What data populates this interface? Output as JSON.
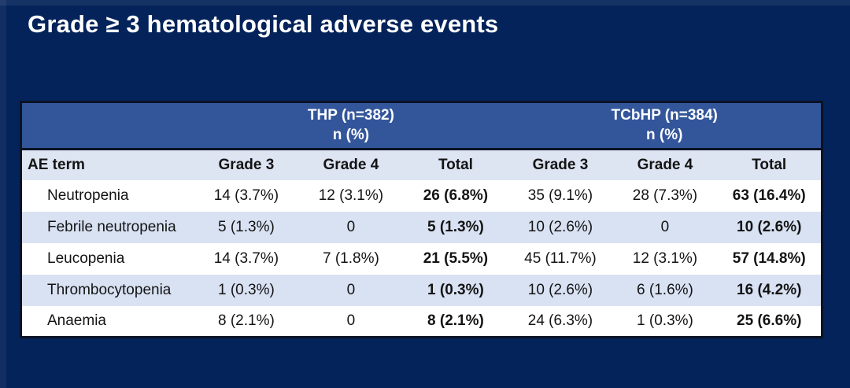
{
  "title": "Grade ≥ 3 hematological adverse events",
  "table": {
    "groups": [
      {
        "label": "THP (n=382)",
        "sublabel": "n (%)"
      },
      {
        "label": "TCbHP (n=384)",
        "sublabel": "n (%)"
      }
    ],
    "columns": [
      "AE term",
      "Grade 3",
      "Grade 4",
      "Total",
      "Grade 3",
      "Grade 4",
      "Total"
    ],
    "rows": [
      {
        "term": "Neutropenia",
        "values": [
          "14 (3.7%)",
          "12 (3.1%)",
          "26 (6.8%)",
          "35 (9.1%)",
          "28 (7.3%)",
          "63 (16.4%)"
        ]
      },
      {
        "term": "Febrile neutropenia",
        "values": [
          "5 (1.3%)",
          "0",
          "5 (1.3%)",
          "10 (2.6%)",
          "0",
          "10 (2.6%)"
        ]
      },
      {
        "term": "Leucopenia",
        "values": [
          "14 (3.7%)",
          "7 (1.8%)",
          "21 (5.5%)",
          "45 (11.7%)",
          "12 (3.1%)",
          "57 (14.8%)"
        ]
      },
      {
        "term": "Thrombocytopenia",
        "values": [
          "1 (0.3%)",
          "0",
          "1 (0.3%)",
          "10 (2.6%)",
          "6 (1.6%)",
          "16 (4.2%)"
        ]
      },
      {
        "term": "Anaemia",
        "values": [
          "8 (2.1%)",
          "0",
          "8 (2.1%)",
          "24 (6.3%)",
          "1 (0.3%)",
          "25 (6.6%)"
        ]
      }
    ]
  },
  "colors": {
    "background": "#04235A",
    "band_blue": "#33569B",
    "column_header_bg": "#DDE4F2",
    "stripe_row_bg": "#D9E2F3",
    "white_row_bg": "#FFFFFF",
    "border_dark": "#0B1224",
    "title_text": "#FFFFFF",
    "table_text": "#141414"
  }
}
